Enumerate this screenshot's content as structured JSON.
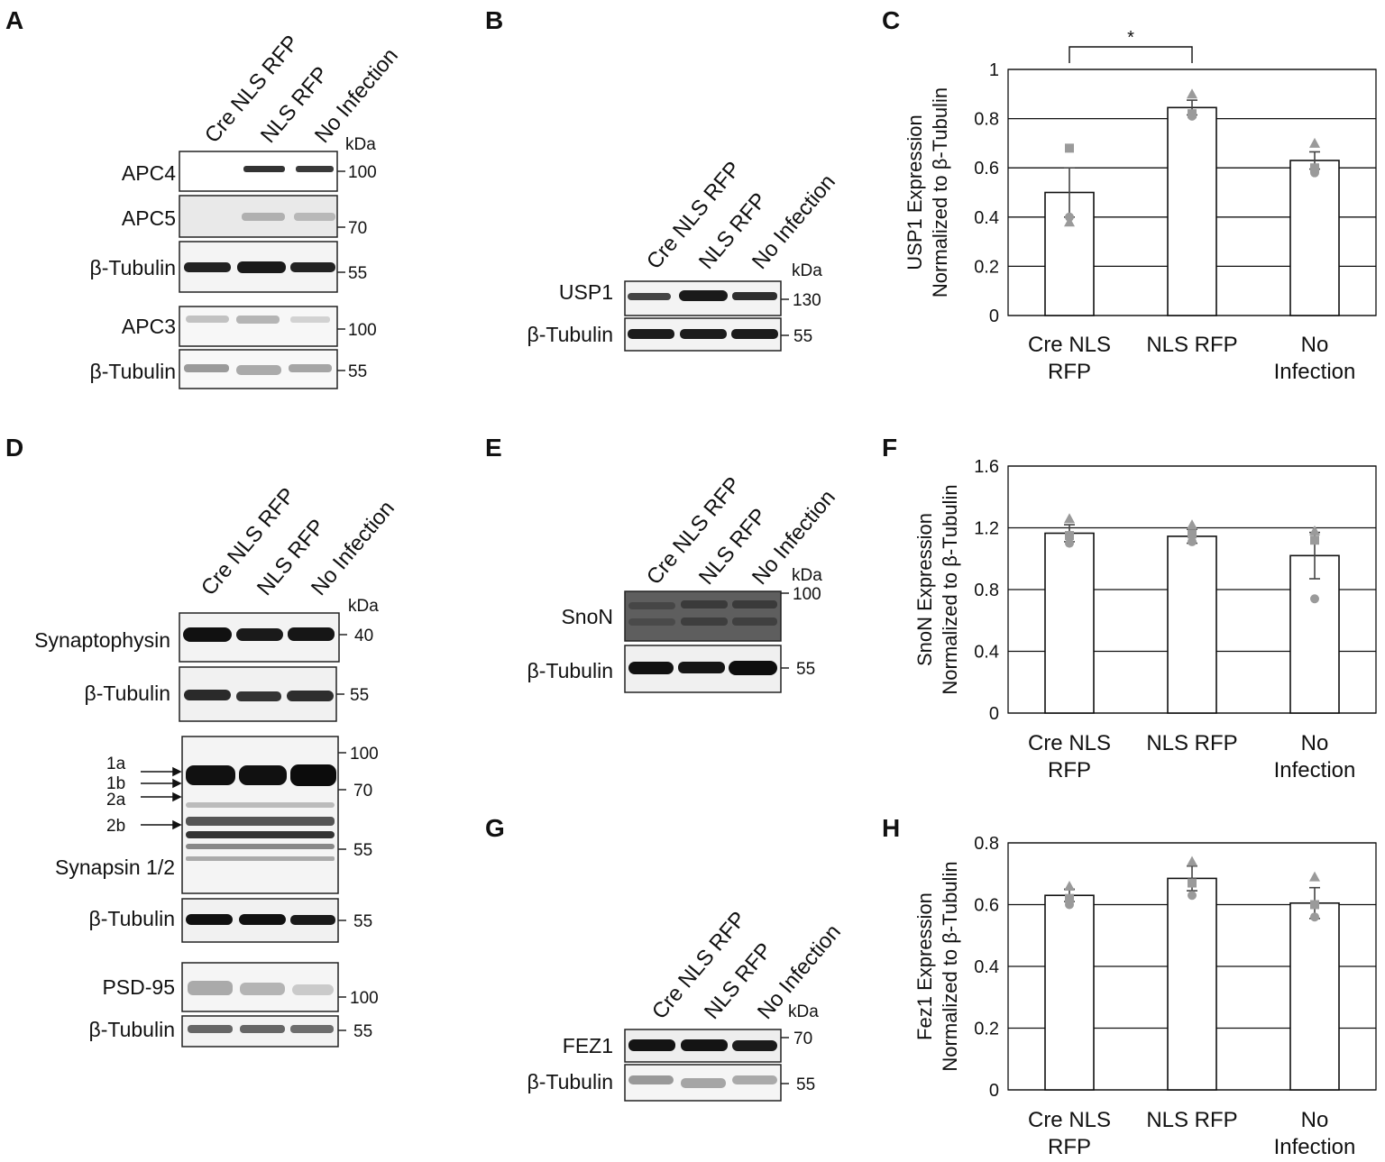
{
  "panels": {
    "A": "A",
    "B": "B",
    "C": "C",
    "D": "D",
    "E": "E",
    "F": "F",
    "G": "G",
    "H": "H"
  },
  "lanes": [
    "Cre NLS RFP",
    "NLS RFP",
    "No Infection"
  ],
  "kda": "kDa",
  "blots": {
    "A": [
      {
        "label": "APC4",
        "mw": "100"
      },
      {
        "label": "APC5",
        "mw": "70"
      },
      {
        "label": "β-Tubulin",
        "mw": "55"
      },
      {
        "label": "APC3",
        "mw": "100"
      },
      {
        "label": "β-Tubulin",
        "mw": "55"
      }
    ],
    "B": [
      {
        "label": "USP1",
        "mw": "130"
      },
      {
        "label": "β-Tubulin",
        "mw": "55"
      }
    ],
    "D": [
      {
        "label": "Synaptophysin",
        "mw": "40"
      },
      {
        "label": "β-Tubulin",
        "mw": "55"
      },
      {
        "label": "Synapsin 1/2",
        "mw": [
          "100",
          "70",
          "55"
        ]
      },
      {
        "label": "β-Tubulin",
        "mw": "55"
      },
      {
        "label": "PSD-95",
        "mw": "100"
      },
      {
        "label": "β-Tubulin",
        "mw": "55"
      }
    ],
    "E": [
      {
        "label": "SnoN",
        "mw": "100"
      },
      {
        "label": "β-Tubulin",
        "mw": "55"
      }
    ],
    "G": [
      {
        "label": "FEZ1",
        "mw": "70"
      },
      {
        "label": "β-Tubulin",
        "mw": "55"
      }
    ]
  },
  "synapsin_arrows": [
    "1a",
    "1b",
    "2a",
    "2b"
  ],
  "colors": {
    "marker": "#9a9a9a",
    "band": "#111111",
    "bar_fill": "#ffffff"
  },
  "chart_data": [
    {
      "panel": "C",
      "type": "bar",
      "categories": [
        "Cre NLS\nRFP",
        "NLS RFP",
        "No\nInfection"
      ],
      "values": [
        0.5,
        0.845,
        0.63
      ],
      "errors": [
        0.1,
        0.03,
        0.035
      ],
      "points": [
        [
          0.4,
          0.68,
          0.38
        ],
        [
          0.81,
          0.82,
          0.9
        ],
        [
          0.58,
          0.6,
          0.7
        ]
      ],
      "ylabel": [
        "USP1 Expression",
        "Normalized to β-Tubulin"
      ],
      "ylim": [
        0,
        1
      ],
      "yticks": [
        "0",
        "0.2",
        "0.4",
        "0.6",
        "0.8",
        "1"
      ],
      "significance": {
        "from": 0,
        "to": 1,
        "label": "*"
      },
      "grid": true
    },
    {
      "panel": "F",
      "type": "bar",
      "categories": [
        "Cre NLS\nRFP",
        "NLS RFP",
        "No\nInfection"
      ],
      "values": [
        1.165,
        1.145,
        1.02
      ],
      "errors": [
        0.055,
        0.045,
        0.15
      ],
      "points": [
        [
          1.1,
          1.15,
          1.26
        ],
        [
          1.11,
          1.16,
          1.22
        ],
        [
          0.74,
          1.12,
          1.18
        ]
      ],
      "ylabel": [
        "SnoN Expression",
        "Normalized to β-Tubulin"
      ],
      "ylim": [
        0,
        1.6
      ],
      "yticks": [
        "0",
        "0.4",
        "0.8",
        "1.2",
        "1.6"
      ],
      "grid": true
    },
    {
      "panel": "H",
      "type": "bar",
      "categories": [
        "Cre NLS\nRFP",
        "NLS RFP",
        "No\nInfection"
      ],
      "values": [
        0.63,
        0.685,
        0.605
      ],
      "errors": [
        0.02,
        0.04,
        0.05
      ],
      "points": [
        [
          0.6,
          0.62,
          0.66
        ],
        [
          0.63,
          0.67,
          0.74
        ],
        [
          0.56,
          0.6,
          0.69
        ]
      ],
      "ylabel": [
        "Fez1 Expression",
        "Normalized to β-Tubulin"
      ],
      "ylim": [
        0,
        0.8
      ],
      "yticks": [
        "0",
        "0.2",
        "0.4",
        "0.6",
        "0.8"
      ],
      "grid": true
    }
  ]
}
